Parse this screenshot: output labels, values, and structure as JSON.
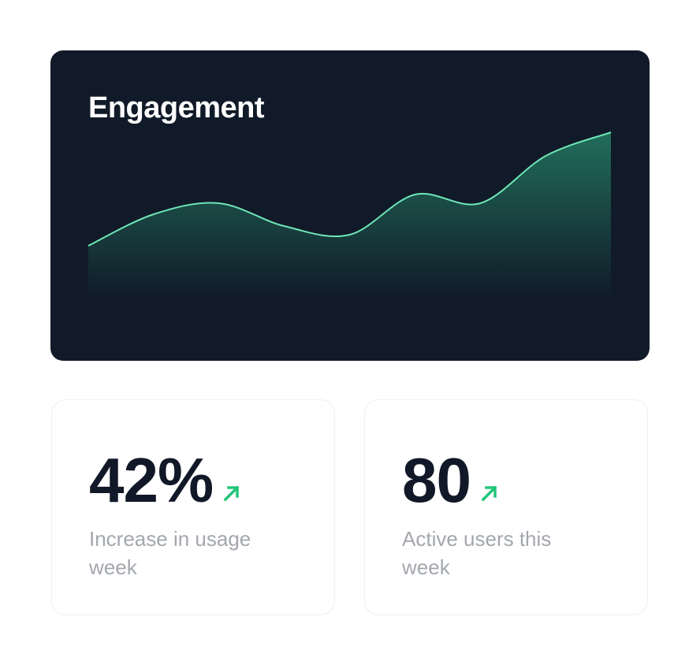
{
  "engagement": {
    "title": "Engagement",
    "chart": {
      "type": "area",
      "color": "#6ee7b7",
      "values": [
        68,
        108,
        122,
        93,
        82,
        133,
        122,
        182,
        212
      ]
    }
  },
  "stats": [
    {
      "value": "42%",
      "label": "Increase in usage week"
    },
    {
      "value": "80",
      "label": "Active users this week"
    }
  ]
}
